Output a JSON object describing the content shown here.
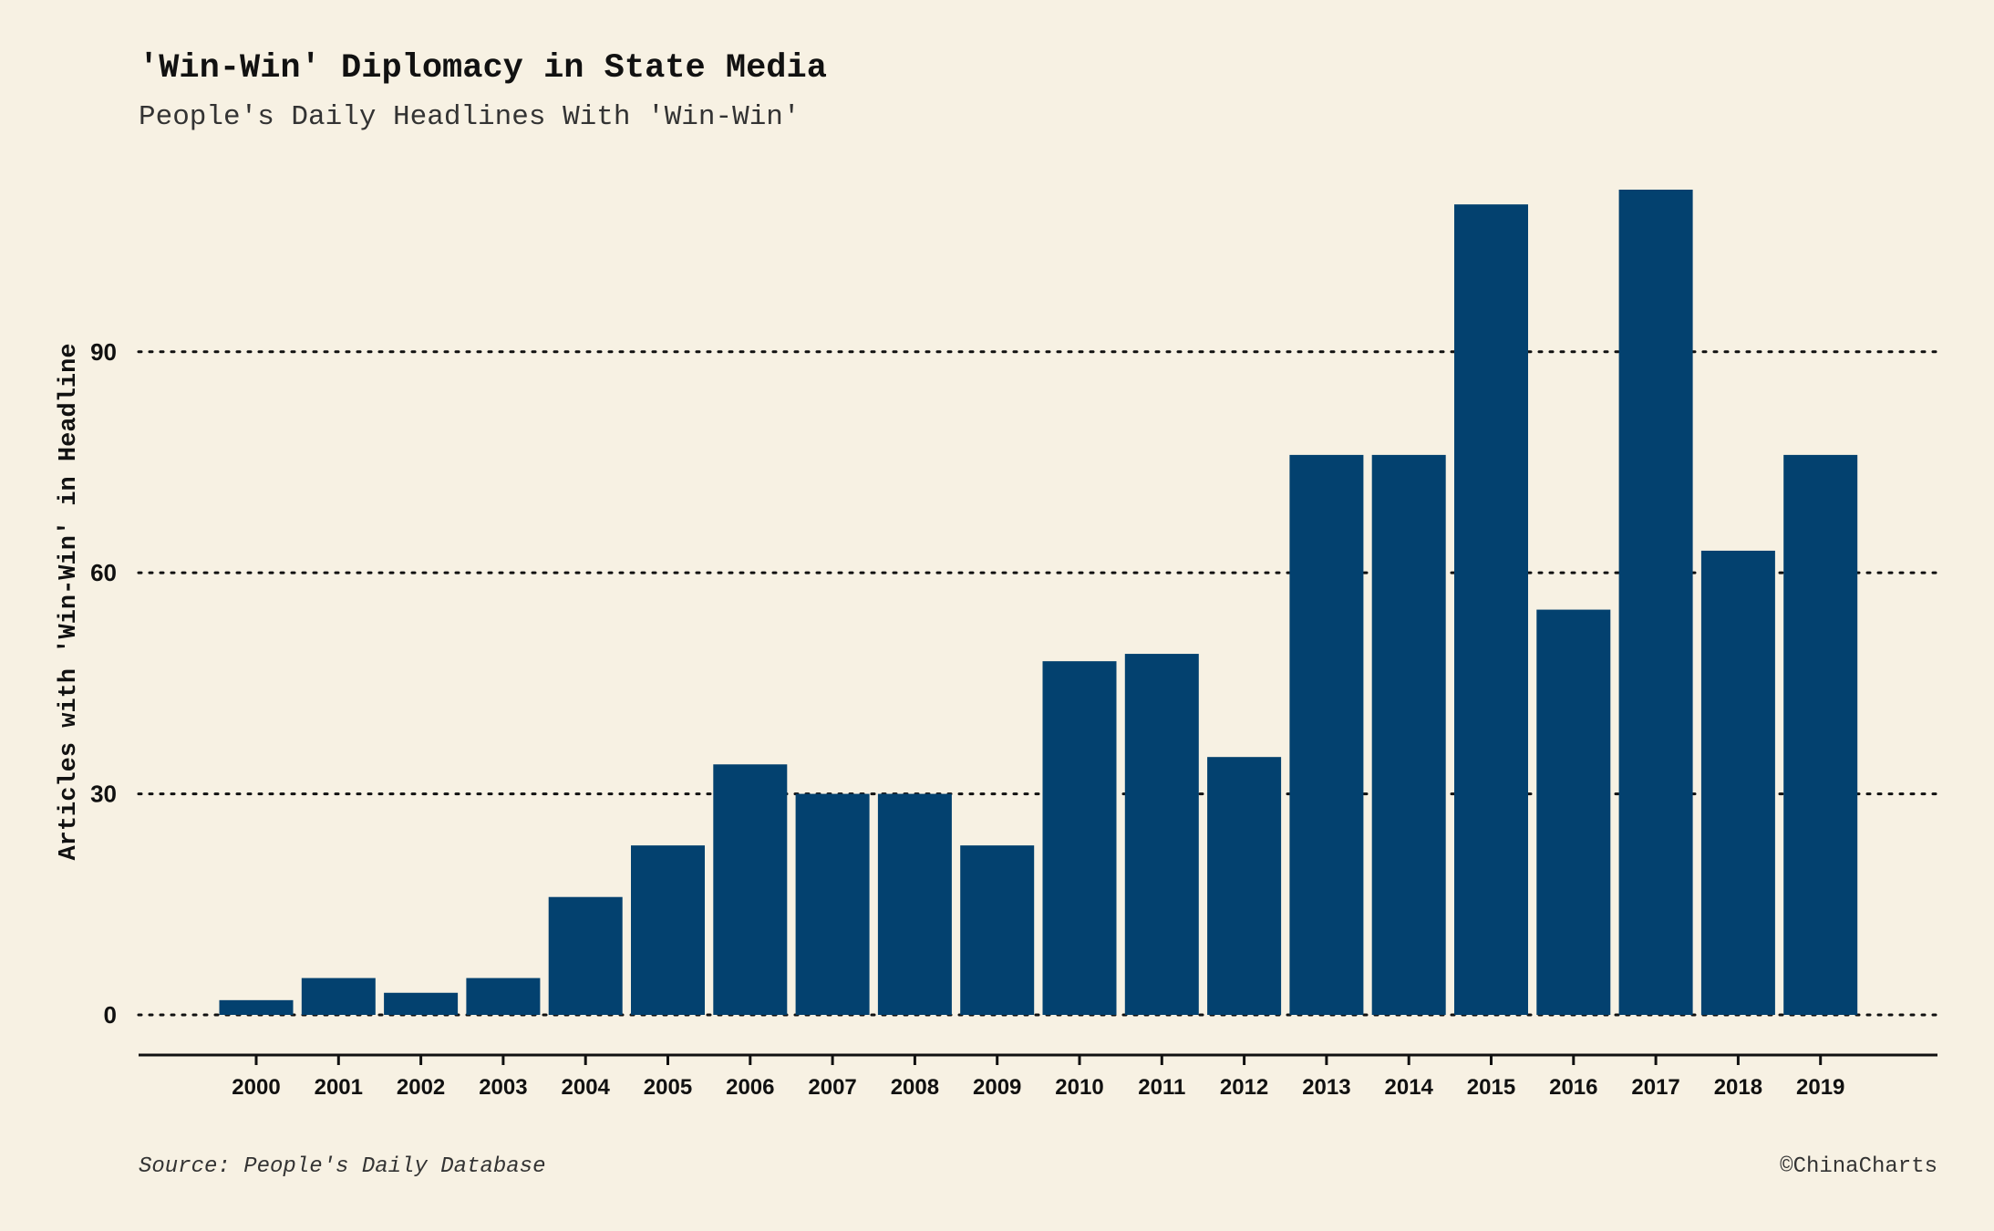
{
  "chart_data": {
    "type": "bar",
    "title": "'Win-Win' Diplomacy in State Media",
    "subtitle": "People's Daily Headlines With 'Win-Win'",
    "xlabel": "",
    "ylabel": "Articles with 'Win-Win' in Headline",
    "categories": [
      "2000",
      "2001",
      "2002",
      "2003",
      "2004",
      "2005",
      "2006",
      "2007",
      "2008",
      "2009",
      "2010",
      "2011",
      "2012",
      "2013",
      "2014",
      "2015",
      "2016",
      "2017",
      "2018",
      "2019"
    ],
    "values": [
      2,
      5,
      3,
      5,
      16,
      23,
      34,
      30,
      30,
      23,
      48,
      49,
      35,
      76,
      76,
      110,
      55,
      112,
      63,
      76
    ],
    "ylim": [
      0,
      112
    ],
    "yticks": [
      0,
      30,
      60,
      90
    ],
    "grid": "horizontal dotted",
    "legend": "none",
    "bar_color": "#03416f",
    "caption_left": "Source: People's Daily Database",
    "caption_right": "©ChinaCharts"
  },
  "colors": {
    "background": "#f7f1e3",
    "bar": "#03416f",
    "text": "#111111",
    "grid": "#111111"
  }
}
